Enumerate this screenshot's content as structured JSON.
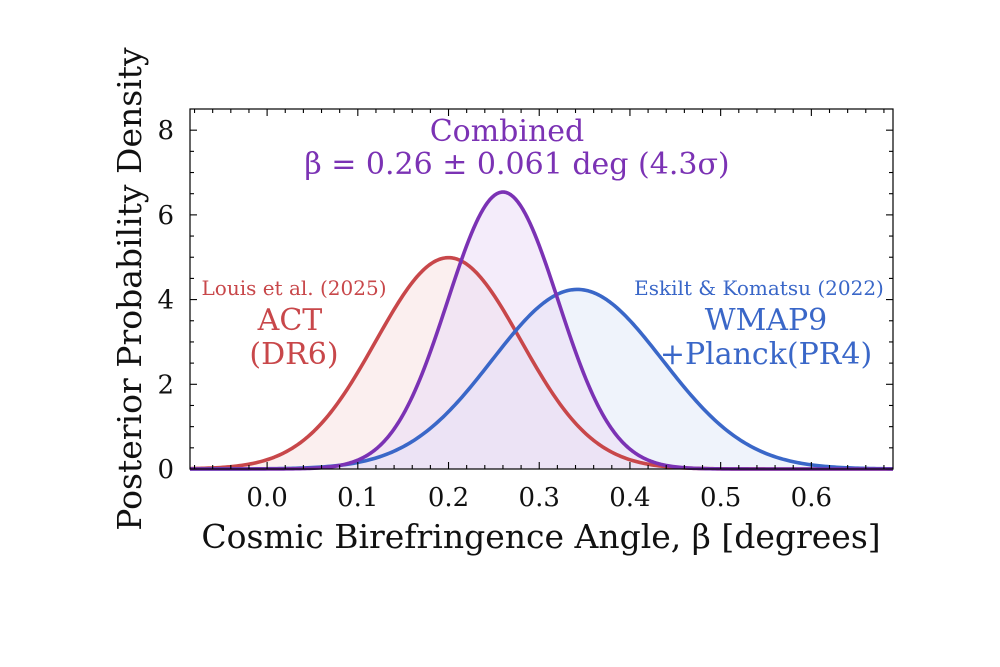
{
  "chart_data": {
    "type": "line",
    "title": "",
    "xlabel": "Cosmic Birefringence Angle, β [degrees]",
    "ylabel": "Posterior Probability Density",
    "xlim": [
      -0.085,
      0.69
    ],
    "ylim": [
      0,
      8.5
    ],
    "x_ticks": [
      0.0,
      0.1,
      0.2,
      0.3,
      0.4,
      0.5,
      0.6
    ],
    "x_tick_labels": [
      "0.0",
      "0.1",
      "0.2",
      "0.3",
      "0.4",
      "0.5",
      "0.6"
    ],
    "y_ticks": [
      0,
      2,
      4,
      6,
      8
    ],
    "y_tick_labels": [
      "0",
      "2",
      "4",
      "6",
      "8"
    ],
    "grid": false,
    "series": [
      {
        "name": "ACT (DR6)",
        "distribution": "gaussian",
        "mean": 0.2,
        "sigma": 0.08,
        "peak": 4.99,
        "color": "#c8474a",
        "fill_color": "#f7e2e2",
        "annotation": [
          "Louis et al. (2025)",
          "ACT",
          "(DR6)"
        ]
      },
      {
        "name": "WMAP9 +Planck(PR4)",
        "distribution": "gaussian",
        "mean": 0.342,
        "sigma": 0.094,
        "peak": 4.24,
        "color": "#3a67c8",
        "fill_color": "#e2e9f7",
        "annotation": [
          "Eskilt & Komatsu (2022)",
          "WMAP9",
          "+Planck(PR4)"
        ]
      },
      {
        "name": "Combined",
        "distribution": "gaussian",
        "mean": 0.26,
        "sigma": 0.061,
        "peak": 6.54,
        "color": "#7b32b4",
        "fill_color": "#ebdcf5",
        "annotation": [
          "Combined",
          "β = 0.26 ± 0.061 deg (4.3σ)"
        ]
      }
    ]
  }
}
